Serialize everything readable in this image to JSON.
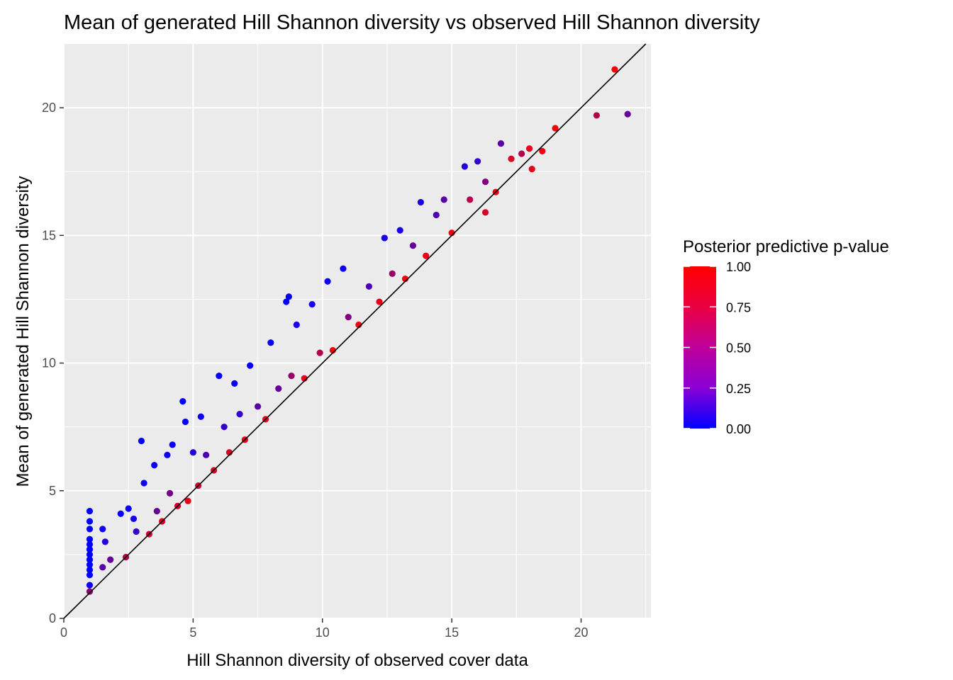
{
  "chart_data": {
    "type": "scatter",
    "title": "Mean of generated Hill Shannon diversity vs observed Hill Shannon diversity",
    "xlabel": "Hill Shannon diversity of observed cover data",
    "ylabel": "Mean of generated Hill Shannon diversity",
    "xlim": [
      0,
      22.7
    ],
    "ylim": [
      0,
      22.5
    ],
    "x_ticks": [
      0,
      5,
      10,
      15,
      20
    ],
    "y_ticks": [
      0,
      5,
      10,
      15,
      20
    ],
    "x_tick_labels": [
      "0",
      "5",
      "10",
      "15",
      "20"
    ],
    "y_tick_labels": [
      "0",
      "5",
      "10",
      "15",
      "20"
    ],
    "reference_line": {
      "slope": 1,
      "intercept": 0,
      "color": "#000000"
    },
    "grid": true,
    "panel_background": "#EBEBEB",
    "color_scale": {
      "title": "Posterior predictive p-value",
      "low_color": "#0000FF",
      "high_color": "#FF0000",
      "range": [
        0,
        1
      ],
      "breaks": [
        1.0,
        0.75,
        0.5,
        0.25,
        0.0
      ],
      "break_labels": [
        "1.00",
        "0.75",
        "0.50",
        "0.25",
        "0.00"
      ],
      "legend_position": "right"
    },
    "points": [
      {
        "x": 1.0,
        "y": 4.2,
        "p": 0.0
      },
      {
        "x": 1.0,
        "y": 3.8,
        "p": 0.0
      },
      {
        "x": 1.0,
        "y": 3.5,
        "p": 0.0
      },
      {
        "x": 1.0,
        "y": 3.1,
        "p": 0.0
      },
      {
        "x": 1.0,
        "y": 2.9,
        "p": 0.0
      },
      {
        "x": 1.0,
        "y": 2.7,
        "p": 0.0
      },
      {
        "x": 1.0,
        "y": 2.5,
        "p": 0.0
      },
      {
        "x": 1.0,
        "y": 2.3,
        "p": 0.0
      },
      {
        "x": 1.0,
        "y": 2.1,
        "p": 0.0
      },
      {
        "x": 1.0,
        "y": 1.9,
        "p": 0.0
      },
      {
        "x": 1.0,
        "y": 1.7,
        "p": 0.0
      },
      {
        "x": 1.0,
        "y": 1.3,
        "p": 0.05
      },
      {
        "x": 1.0,
        "y": 1.05,
        "p": 0.55
      },
      {
        "x": 1.5,
        "y": 3.5,
        "p": 0.05
      },
      {
        "x": 1.6,
        "y": 3.0,
        "p": 0.15
      },
      {
        "x": 1.5,
        "y": 2.0,
        "p": 0.35
      },
      {
        "x": 1.8,
        "y": 2.3,
        "p": 0.4
      },
      {
        "x": 2.2,
        "y": 4.1,
        "p": 0.05
      },
      {
        "x": 2.4,
        "y": 2.4,
        "p": 0.7
      },
      {
        "x": 2.5,
        "y": 4.3,
        "p": 0.05
      },
      {
        "x": 2.7,
        "y": 3.9,
        "p": 0.1
      },
      {
        "x": 2.8,
        "y": 3.4,
        "p": 0.2
      },
      {
        "x": 3.0,
        "y": 6.95,
        "p": 0.0
      },
      {
        "x": 3.1,
        "y": 5.3,
        "p": 0.05
      },
      {
        "x": 3.3,
        "y": 3.3,
        "p": 0.8
      },
      {
        "x": 3.5,
        "y": 6.0,
        "p": 0.05
      },
      {
        "x": 3.6,
        "y": 4.2,
        "p": 0.4
      },
      {
        "x": 3.8,
        "y": 3.8,
        "p": 0.85
      },
      {
        "x": 4.0,
        "y": 6.4,
        "p": 0.05
      },
      {
        "x": 4.2,
        "y": 6.8,
        "p": 0.03
      },
      {
        "x": 4.1,
        "y": 4.9,
        "p": 0.45
      },
      {
        "x": 4.4,
        "y": 4.4,
        "p": 0.8
      },
      {
        "x": 4.6,
        "y": 8.5,
        "p": 0.0
      },
      {
        "x": 4.7,
        "y": 7.7,
        "p": 0.02
      },
      {
        "x": 4.8,
        "y": 4.6,
        "p": 0.9
      },
      {
        "x": 5.0,
        "y": 6.5,
        "p": 0.15
      },
      {
        "x": 5.2,
        "y": 5.2,
        "p": 0.8
      },
      {
        "x": 5.3,
        "y": 7.9,
        "p": 0.05
      },
      {
        "x": 5.5,
        "y": 6.4,
        "p": 0.3
      },
      {
        "x": 5.8,
        "y": 5.8,
        "p": 0.85
      },
      {
        "x": 6.0,
        "y": 9.5,
        "p": 0.0
      },
      {
        "x": 6.2,
        "y": 7.5,
        "p": 0.2
      },
      {
        "x": 6.4,
        "y": 6.5,
        "p": 0.85
      },
      {
        "x": 6.6,
        "y": 9.2,
        "p": 0.03
      },
      {
        "x": 6.8,
        "y": 8.0,
        "p": 0.2
      },
      {
        "x": 7.0,
        "y": 7.0,
        "p": 0.9
      },
      {
        "x": 7.2,
        "y": 9.9,
        "p": 0.03
      },
      {
        "x": 7.5,
        "y": 8.3,
        "p": 0.35
      },
      {
        "x": 7.8,
        "y": 7.8,
        "p": 0.9
      },
      {
        "x": 8.0,
        "y": 10.8,
        "p": 0.05
      },
      {
        "x": 8.3,
        "y": 9.0,
        "p": 0.4
      },
      {
        "x": 8.6,
        "y": 12.4,
        "p": 0.02
      },
      {
        "x": 8.7,
        "y": 12.6,
        "p": 0.02
      },
      {
        "x": 8.8,
        "y": 9.5,
        "p": 0.6
      },
      {
        "x": 9.0,
        "y": 11.5,
        "p": 0.1
      },
      {
        "x": 9.3,
        "y": 9.4,
        "p": 0.9
      },
      {
        "x": 9.6,
        "y": 12.3,
        "p": 0.1
      },
      {
        "x": 9.9,
        "y": 10.4,
        "p": 0.7
      },
      {
        "x": 10.2,
        "y": 13.2,
        "p": 0.05
      },
      {
        "x": 10.4,
        "y": 10.5,
        "p": 0.95
      },
      {
        "x": 10.8,
        "y": 13.7,
        "p": 0.05
      },
      {
        "x": 11.0,
        "y": 11.8,
        "p": 0.5
      },
      {
        "x": 11.4,
        "y": 11.5,
        "p": 0.95
      },
      {
        "x": 11.8,
        "y": 13.0,
        "p": 0.3
      },
      {
        "x": 12.2,
        "y": 12.4,
        "p": 0.9
      },
      {
        "x": 12.4,
        "y": 14.9,
        "p": 0.1
      },
      {
        "x": 12.7,
        "y": 13.5,
        "p": 0.6
      },
      {
        "x": 13.0,
        "y": 15.2,
        "p": 0.1
      },
      {
        "x": 13.2,
        "y": 13.3,
        "p": 0.95
      },
      {
        "x": 13.5,
        "y": 14.6,
        "p": 0.4
      },
      {
        "x": 13.8,
        "y": 16.3,
        "p": 0.1
      },
      {
        "x": 14.0,
        "y": 14.2,
        "p": 0.9
      },
      {
        "x": 14.4,
        "y": 15.8,
        "p": 0.3
      },
      {
        "x": 14.7,
        "y": 16.4,
        "p": 0.35
      },
      {
        "x": 15.0,
        "y": 15.1,
        "p": 0.95
      },
      {
        "x": 15.5,
        "y": 17.7,
        "p": 0.15
      },
      {
        "x": 15.7,
        "y": 16.4,
        "p": 0.7
      },
      {
        "x": 16.0,
        "y": 17.9,
        "p": 0.2
      },
      {
        "x": 16.3,
        "y": 17.1,
        "p": 0.5
      },
      {
        "x": 16.3,
        "y": 15.9,
        "p": 0.85
      },
      {
        "x": 16.7,
        "y": 16.7,
        "p": 0.95
      },
      {
        "x": 16.9,
        "y": 18.6,
        "p": 0.35
      },
      {
        "x": 17.3,
        "y": 18.0,
        "p": 0.85
      },
      {
        "x": 17.7,
        "y": 18.2,
        "p": 0.7
      },
      {
        "x": 18.0,
        "y": 18.4,
        "p": 0.9
      },
      {
        "x": 18.1,
        "y": 17.6,
        "p": 0.9
      },
      {
        "x": 18.5,
        "y": 18.3,
        "p": 0.95
      },
      {
        "x": 19.0,
        "y": 19.2,
        "p": 0.97
      },
      {
        "x": 20.6,
        "y": 19.7,
        "p": 0.7
      },
      {
        "x": 21.3,
        "y": 21.5,
        "p": 0.98
      },
      {
        "x": 21.8,
        "y": 19.75,
        "p": 0.4
      }
    ]
  }
}
